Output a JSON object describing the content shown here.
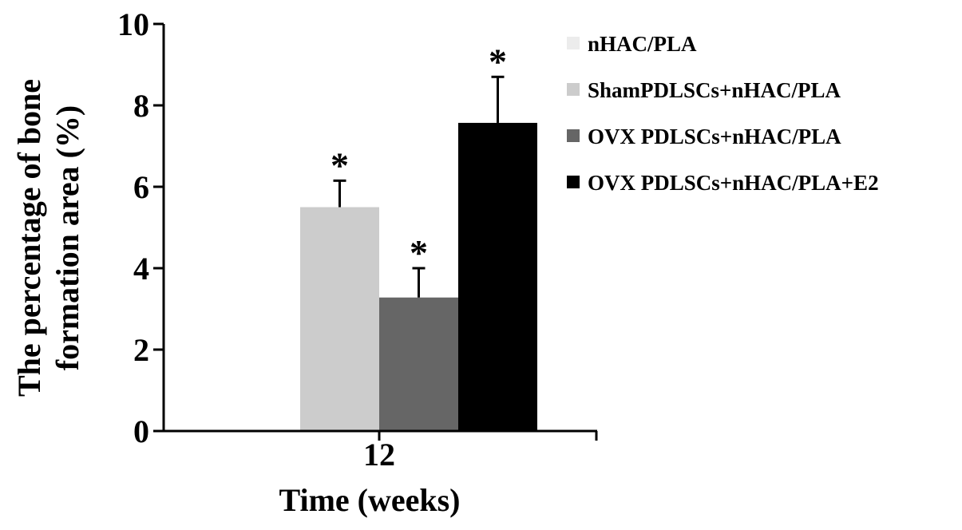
{
  "chart_data": {
    "type": "bar",
    "title": "",
    "xlabel": "Time (weeks)",
    "ylabel_lines": [
      "The percentage of bone",
      "formation area (%)"
    ],
    "categories": [
      "12"
    ],
    "ylim": [
      0,
      10
    ],
    "yticks": [
      0,
      2,
      4,
      6,
      8,
      10
    ],
    "legend_position": "top-right",
    "grid": false,
    "series": [
      {
        "name": "nHAC/PLA",
        "values": [
          0
        ],
        "errors": [
          0
        ],
        "annotation": "",
        "color": "#ececec"
      },
      {
        "name": "ShamPDLSCs+nHAC/PLA",
        "values": [
          5.5
        ],
        "errors": [
          0.65
        ],
        "annotation": "*",
        "color": "#cccccc"
      },
      {
        "name": "OVX PDLSCs+nHAC/PLA",
        "values": [
          3.28
        ],
        "errors": [
          0.72
        ],
        "annotation": "*",
        "color": "#666666"
      },
      {
        "name": "OVX PDLSCs+nHAC/PLA+E2",
        "values": [
          7.57
        ],
        "errors": [
          1.13
        ],
        "annotation": "*",
        "color": "#000000"
      }
    ]
  }
}
